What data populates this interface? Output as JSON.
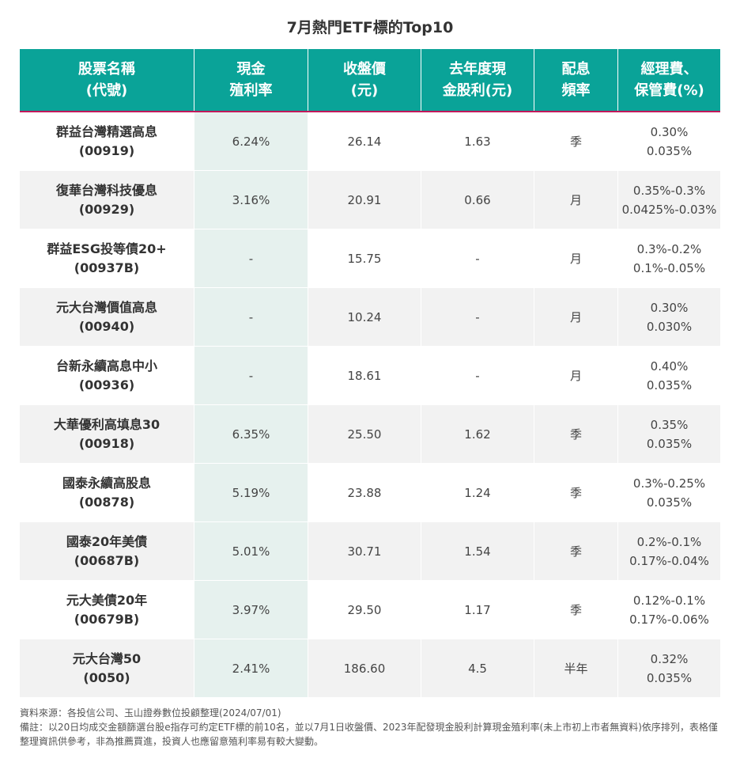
{
  "title": "7月熱門ETF標的Top10",
  "chart_data": {
    "type": "table",
    "title": "7月熱門ETF標的Top10",
    "headers": [
      [
        "股票名稱",
        "(代號)"
      ],
      [
        "現金",
        "殖利率"
      ],
      [
        "收盤價",
        "(元)"
      ],
      [
        "去年度現",
        "金股利(元)"
      ],
      [
        "配息",
        "頻率"
      ],
      [
        "經理費、",
        "保管費(%)"
      ]
    ],
    "rows": [
      {
        "name": "群益台灣精選高息",
        "code": "(00919)",
        "yield": "6.24%",
        "price": "26.14",
        "dividend": "1.63",
        "freq": "季",
        "fee1": "0.30%",
        "fee2": "0.035%"
      },
      {
        "name": "復華台灣科技優息",
        "code": "(00929)",
        "yield": "3.16%",
        "price": "20.91",
        "dividend": "0.66",
        "freq": "月",
        "fee1": "0.35%-0.3%",
        "fee2": "0.0425%-0.03%"
      },
      {
        "name": "群益ESG投等債20+",
        "code": "(00937B)",
        "yield": "-",
        "price": "15.75",
        "dividend": "-",
        "freq": "月",
        "fee1": "0.3%-0.2%",
        "fee2": "0.1%-0.05%"
      },
      {
        "name": "元大台灣價值高息",
        "code": "(00940)",
        "yield": "-",
        "price": "10.24",
        "dividend": "-",
        "freq": "月",
        "fee1": "0.30%",
        "fee2": "0.030%"
      },
      {
        "name": "台新永續高息中小",
        "code": "(00936)",
        "yield": "-",
        "price": "18.61",
        "dividend": "-",
        "freq": "月",
        "fee1": "0.40%",
        "fee2": "0.035%"
      },
      {
        "name": "大華優利高填息30",
        "code": "(00918)",
        "yield": "6.35%",
        "price": "25.50",
        "dividend": "1.62",
        "freq": "季",
        "fee1": "0.35%",
        "fee2": "0.035%"
      },
      {
        "name": "國泰永續高股息",
        "code": "(00878)",
        "yield": "5.19%",
        "price": "23.88",
        "dividend": "1.24",
        "freq": "季",
        "fee1": "0.3%-0.25%",
        "fee2": "0.035%"
      },
      {
        "name": "國泰20年美債",
        "code": "(00687B)",
        "yield": "5.01%",
        "price": "30.71",
        "dividend": "1.54",
        "freq": "季",
        "fee1": "0.2%-0.1%",
        "fee2": "0.17%-0.04%"
      },
      {
        "name": "元大美債20年",
        "code": "(00679B)",
        "yield": "3.97%",
        "price": "29.50",
        "dividend": "1.17",
        "freq": "季",
        "fee1": "0.12%-0.1%",
        "fee2": "0.17%-0.06%"
      },
      {
        "name": "元大台灣50",
        "code": "(0050)",
        "yield": "2.41%",
        "price": "186.60",
        "dividend": "4.5",
        "freq": "半年",
        "fee1": "0.32%",
        "fee2": "0.035%"
      }
    ]
  },
  "notes": {
    "source": "資料來源：各投信公司、玉山證券數位投顧整理(2024/07/01)",
    "remark": "備註：以20日均成交金額篩選台股e指存可約定ETF標的前10名，並以7月1日收盤價、2023年配發現金股利計算現金殖利率(未上市初上市者無資料)依序排列，表格僅整理資訊供參考，非為推薦買進，投資人也應留意殖利率易有較大變動。"
  },
  "colors": {
    "header_bg": "#0aa398",
    "header_rule": "#c2185b",
    "yield_col_bg": "#e6f1ee",
    "row_alt_bg": "#f2f2f2"
  }
}
